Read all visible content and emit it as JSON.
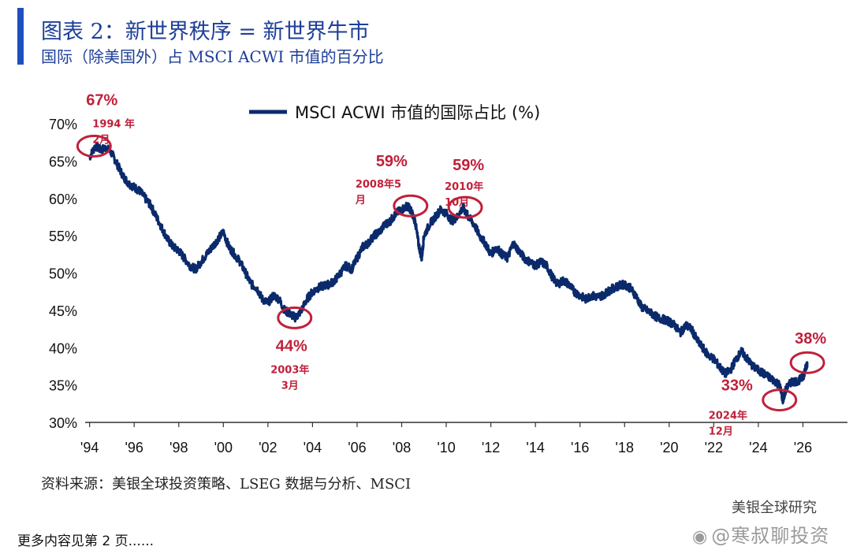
{
  "header": {
    "title": "图表 2：新世界秩序 = 新世界牛市",
    "subtitle": "国际（除美国外）占 MSCI ACWI 市值的百分比"
  },
  "chart_data": {
    "type": "line",
    "legend": "MSCI ACWI 市值的国际占比 (%)",
    "legend_placement": "top-center",
    "y_ticks": [
      "70%",
      "65%",
      "60%",
      "55%",
      "50%",
      "45%",
      "40%",
      "35%",
      "30%"
    ],
    "y_tick_values": [
      70,
      65,
      60,
      55,
      50,
      45,
      40,
      35,
      30
    ],
    "x_ticks": [
      "'94",
      "'96",
      "'98",
      "'00",
      "'02",
      "'04",
      "'06",
      "'08",
      "'10",
      "'12",
      "'14",
      "'16",
      "'18",
      "'20",
      "'22",
      "'24",
      "'26"
    ],
    "x_tick_values": [
      1994,
      1996,
      1998,
      2000,
      2002,
      2004,
      2006,
      2008,
      2010,
      2012,
      2014,
      2016,
      2018,
      2020,
      2022,
      2024,
      2026
    ],
    "xlim": [
      1993.8,
      2028.0
    ],
    "ylim": [
      30,
      70
    ],
    "series": [
      {
        "name": "MSCI ACWI 市值的国际占比 (%)",
        "color": "#0b2a6b",
        "x": [
          1994.0,
          1994.25,
          1994.5,
          1994.75,
          1995.0,
          1995.25,
          1995.5,
          1995.75,
          1996.0,
          1996.25,
          1996.5,
          1996.75,
          1997.0,
          1997.25,
          1997.5,
          1997.75,
          1998.0,
          1998.25,
          1998.5,
          1998.75,
          1999.0,
          1999.25,
          1999.5,
          1999.75,
          2000.0,
          2000.25,
          2000.5,
          2000.75,
          2001.0,
          2001.25,
          2001.5,
          2001.75,
          2002.0,
          2002.25,
          2002.5,
          2002.75,
          2003.0,
          2003.25,
          2003.5,
          2003.75,
          2004.0,
          2004.25,
          2004.5,
          2004.75,
          2005.0,
          2005.25,
          2005.5,
          2005.75,
          2006.0,
          2006.25,
          2006.5,
          2006.75,
          2007.0,
          2007.25,
          2007.5,
          2007.75,
          2008.0,
          2008.25,
          2008.4,
          2008.6,
          2008.75,
          2008.9,
          2009.0,
          2009.25,
          2009.5,
          2009.75,
          2010.0,
          2010.25,
          2010.5,
          2010.75,
          2010.9,
          2011.0,
          2011.25,
          2011.5,
          2011.75,
          2012.0,
          2012.25,
          2012.5,
          2012.75,
          2013.0,
          2013.25,
          2013.5,
          2013.75,
          2014.0,
          2014.25,
          2014.5,
          2014.75,
          2015.0,
          2015.25,
          2015.5,
          2015.75,
          2016.0,
          2016.25,
          2016.5,
          2016.75,
          2017.0,
          2017.25,
          2017.5,
          2017.75,
          2018.0,
          2018.25,
          2018.5,
          2018.75,
          2019.0,
          2019.25,
          2019.5,
          2019.75,
          2020.0,
          2020.25,
          2020.5,
          2020.75,
          2021.0,
          2021.25,
          2021.5,
          2021.75,
          2022.0,
          2022.25,
          2022.5,
          2022.75,
          2023.0,
          2023.25,
          2023.5,
          2023.75,
          2024.0,
          2024.25,
          2024.5,
          2024.75,
          2024.95,
          2025.1,
          2025.25,
          2025.5,
          2025.75,
          2026.0,
          2026.1,
          2026.2
        ],
        "values": [
          65.5,
          67.0,
          66.5,
          66.8,
          66.0,
          64.5,
          63.0,
          62.0,
          61.5,
          61.0,
          60.0,
          59.0,
          57.5,
          56.0,
          54.5,
          53.5,
          53.0,
          52.0,
          51.0,
          50.5,
          51.5,
          52.5,
          53.5,
          54.5,
          55.5,
          53.5,
          52.5,
          51.5,
          50.0,
          48.5,
          48.0,
          46.5,
          46.0,
          47.0,
          46.5,
          45.0,
          44.5,
          44.0,
          45.0,
          46.5,
          47.5,
          48.0,
          48.3,
          48.5,
          49.0,
          50.0,
          51.0,
          50.5,
          52.0,
          53.5,
          54.0,
          55.0,
          55.5,
          56.5,
          57.0,
          58.0,
          58.5,
          59.0,
          58.5,
          57.0,
          54.0,
          52.0,
          55.0,
          56.5,
          57.5,
          58.5,
          58.0,
          57.0,
          57.5,
          58.8,
          58.0,
          57.5,
          56.5,
          55.0,
          54.0,
          52.5,
          53.5,
          52.5,
          52.0,
          54.0,
          53.0,
          52.0,
          51.5,
          51.0,
          51.5,
          51.0,
          49.5,
          48.5,
          49.0,
          48.5,
          47.5,
          47.0,
          46.5,
          47.0,
          46.8,
          47.0,
          47.5,
          48.0,
          48.3,
          48.5,
          48.0,
          47.0,
          45.5,
          45.0,
          44.5,
          44.0,
          43.8,
          43.5,
          43.0,
          42.0,
          43.0,
          42.5,
          41.0,
          40.0,
          39.0,
          38.5,
          37.5,
          36.5,
          37.0,
          38.5,
          39.5,
          38.5,
          37.5,
          37.0,
          36.5,
          36.0,
          35.5,
          35.0,
          33.0,
          34.5,
          35.5,
          35.5,
          36.0,
          37.0,
          38.0
        ]
      }
    ],
    "annotations": [
      {
        "value_label": "67%",
        "date_line1": "1994 年",
        "date_line2": "2月",
        "x": 1994.2,
        "y": 67.0
      },
      {
        "value_label": "44%",
        "date_line1": "2003年",
        "date_line2": "3月",
        "x": 2003.2,
        "y": 44.0
      },
      {
        "value_label": "59%",
        "date_line1": "2008年5",
        "date_line2": "月",
        "x": 2008.4,
        "y": 59.0
      },
      {
        "value_label": "59%",
        "date_line1": "2010年",
        "date_line2": "10月",
        "x": 2010.85,
        "y": 58.8
      },
      {
        "value_label": "33%",
        "date_line1": "2024年",
        "date_line2": "12月",
        "x": 2024.95,
        "y": 33.0
      },
      {
        "value_label": "38%",
        "date_line1": "",
        "date_line2": "",
        "x": 2026.2,
        "y": 38.0
      }
    ]
  },
  "footer": {
    "source": "资料来源：美银全球投资策略、LSEG 数据与分析、MSCI",
    "credit": "美银全球研究",
    "watermark": "@寒叔聊投资",
    "more": "更多内容见第 2 页......"
  },
  "colors": {
    "line": "#0b2a6b",
    "annotation": "#c0203a",
    "title": "#1e3f99",
    "accent_bar": "#1f4fbf"
  }
}
